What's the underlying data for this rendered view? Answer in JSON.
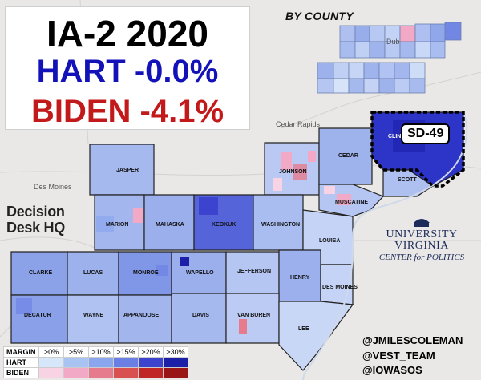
{
  "title": {
    "line1": "IA-2 2020",
    "line2": "HART -0.0%",
    "line3": "BIDEN -4.1%"
  },
  "inset_label": "BY COUNTY",
  "district_label": "SD-49",
  "towns": {
    "des_moines": "Des Moines",
    "cedar_rapids": "Cedar Rapids",
    "dubuque": "Dub"
  },
  "counties": {
    "jasper": "JASPER",
    "johnson": "JOHNSON",
    "cedar": "CEDAR",
    "clinton": "CLINTON",
    "scott": "SCOTT",
    "muscatine": "MUSCATINE",
    "marion": "MARION",
    "mahaska": "MAHASKA",
    "keokuk": "KEOKUK",
    "washington": "WASHINGTON",
    "louisa": "LOUISA",
    "clarke": "CLARKE",
    "lucas": "LUCAS",
    "monroe": "MONROE",
    "wapello": "WAPELLO",
    "jefferson": "JEFFERSON",
    "henry": "HENRY",
    "des_moines": "DES MOINES",
    "decatur": "DECATUR",
    "wayne": "WAYNE",
    "appanoose": "APPANOOSE",
    "davis": "DAVIS",
    "van_buren": "VAN BUREN",
    "lee": "LEE"
  },
  "logo_ddhq": {
    "line1": "Decision",
    "line2": "Desk HQ"
  },
  "logo_uva": {
    "line1": "UNIVERSITY",
    "line2": "VIRGINIA",
    "line3": "CENTER for POLITICS"
  },
  "credits": [
    "@JMILESCOLEMAN",
    "@VEST_TEAM",
    "@IOWASOS"
  ],
  "legend": {
    "header": "MARGIN",
    "bins": [
      ">0%",
      ">5%",
      ">10%",
      ">15%",
      ">20%",
      ">30%"
    ],
    "rows": [
      {
        "label": "HART",
        "colors": [
          "#d6e6fb",
          "#a9c4f2",
          "#8aa6ef",
          "#6a7fe4",
          "#3c43cf",
          "#1c1fa8"
        ]
      },
      {
        "label": "BIDEN",
        "colors": [
          "#f7d3e4",
          "#f2a9c5",
          "#e77b8e",
          "#d95050",
          "#c12626",
          "#9a1515"
        ]
      }
    ]
  },
  "colors": {
    "background": "#e9e8e6",
    "title_black": "#000000",
    "title_blue": "#1212b8",
    "title_red": "#c21a1a",
    "county_border": "#222222",
    "district_outline": "#000000"
  }
}
